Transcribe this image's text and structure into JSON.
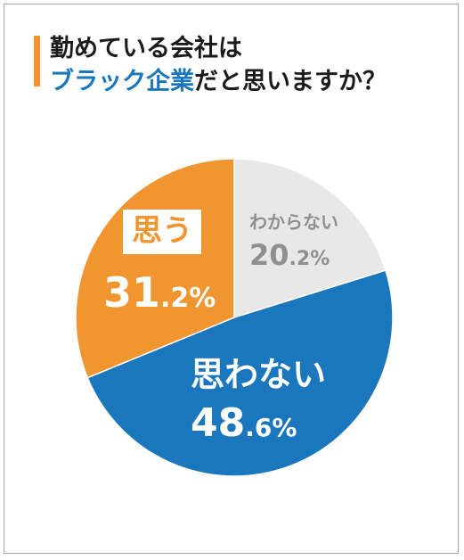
{
  "title": {
    "line1": "勤めている会社は",
    "line2_accent": "ブラック企業",
    "line2_rest": "だと思いますか？"
  },
  "chart_data": {
    "type": "pie",
    "title": "勤めている会社はブラック企業だと思いますか？",
    "slices": [
      {
        "label": "わからない",
        "value": 20.2,
        "value_int": "20",
        "value_dec": ".2%",
        "color": "#e8e8e8"
      },
      {
        "label": "思わない",
        "value": 48.6,
        "value_int": "48",
        "value_dec": ".6%",
        "color": "#1b77bd"
      },
      {
        "label": "思う",
        "value": 31.2,
        "value_int": "31",
        "value_dec": ".2%",
        "color": "#f0952f"
      }
    ],
    "start": "top",
    "direction": "clockwise"
  }
}
